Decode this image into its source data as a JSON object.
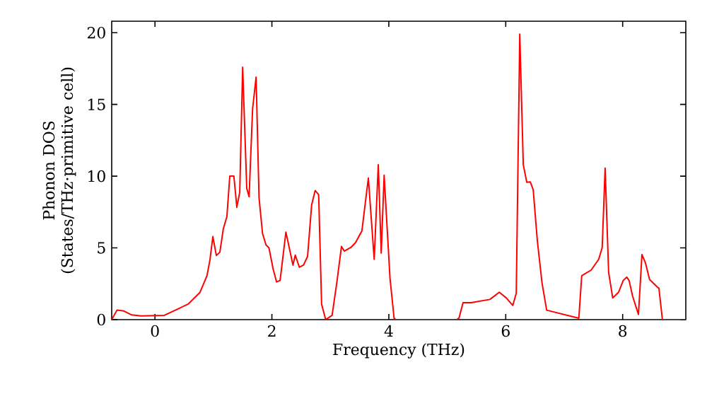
{
  "chart_data": {
    "type": "line",
    "xlabel": "Frequency (THz)",
    "ylabel": "Phonon DOS (States/THz·primitive cell)",
    "xlim": [
      -0.74,
      9.08
    ],
    "ylim": [
      0,
      20.8
    ],
    "xticks": [
      0,
      2,
      4,
      6,
      8
    ],
    "yticks": [
      0,
      5,
      10,
      15,
      20
    ],
    "marker": "none",
    "line_style": "solid",
    "x": [
      -0.74,
      -0.65,
      -0.53,
      -0.4,
      -0.24,
      0.16,
      0.4,
      0.57,
      0.77,
      0.89,
      0.94,
      0.99,
      1.05,
      1.11,
      1.17,
      1.23,
      1.28,
      1.35,
      1.4,
      1.45,
      1.5,
      1.57,
      1.61,
      1.67,
      1.73,
      1.78,
      1.84,
      1.9,
      1.95,
      2.02,
      2.08,
      2.14,
      2.24,
      2.36,
      2.4,
      2.47,
      2.54,
      2.61,
      2.68,
      2.74,
      2.8,
      2.85,
      2.92,
      3.03,
      3.11,
      3.19,
      3.24,
      3.35,
      3.43,
      3.54,
      3.65,
      3.75,
      3.82,
      3.87,
      3.92,
      4.02,
      4.09,
      4.12,
      5.16,
      5.2,
      5.27,
      5.41,
      5.73,
      5.89,
      6.01,
      6.12,
      6.18,
      6.24,
      6.3,
      6.36,
      6.42,
      6.47,
      6.54,
      6.62,
      6.7,
      7.25,
      7.3,
      7.46,
      7.59,
      7.65,
      7.7,
      7.76,
      7.83,
      7.93,
      8.01,
      8.07,
      8.11,
      8.17,
      8.27,
      8.33,
      8.39,
      8.46,
      8.6,
      8.62,
      8.68,
      9.08
    ],
    "series": [
      {
        "color": "#ff0000",
        "values": [
          0,
          0.66,
          0.6,
          0.33,
          0.26,
          0.3,
          0.76,
          1.09,
          1.9,
          3.06,
          4.15,
          5.79,
          4.47,
          4.7,
          6.35,
          7.17,
          10.0,
          10.0,
          7.83,
          8.88,
          17.6,
          9.15,
          8.56,
          14.7,
          16.9,
          8.5,
          6.0,
          5.2,
          5.0,
          3.55,
          2.63,
          2.73,
          6.1,
          3.8,
          4.5,
          3.65,
          3.8,
          4.4,
          8.0,
          9.0,
          8.7,
          1.09,
          0,
          0.3,
          2.57,
          5.1,
          4.77,
          5.03,
          5.36,
          6.19,
          9.87,
          4.2,
          10.8,
          4.64,
          10.07,
          2.9,
          0.1,
          0,
          0,
          0.1,
          1.18,
          1.18,
          1.41,
          1.91,
          1.51,
          0.99,
          1.84,
          19.9,
          10.8,
          9.57,
          9.6,
          9.05,
          5.53,
          2.57,
          0.66,
          0.1,
          3.06,
          3.45,
          4.2,
          5.03,
          10.56,
          3.29,
          1.51,
          1.91,
          2.73,
          2.96,
          2.73,
          1.64,
          0.36,
          4.54,
          3.95,
          2.8,
          2.24,
          2.2,
          0,
          0
        ]
      }
    ]
  }
}
